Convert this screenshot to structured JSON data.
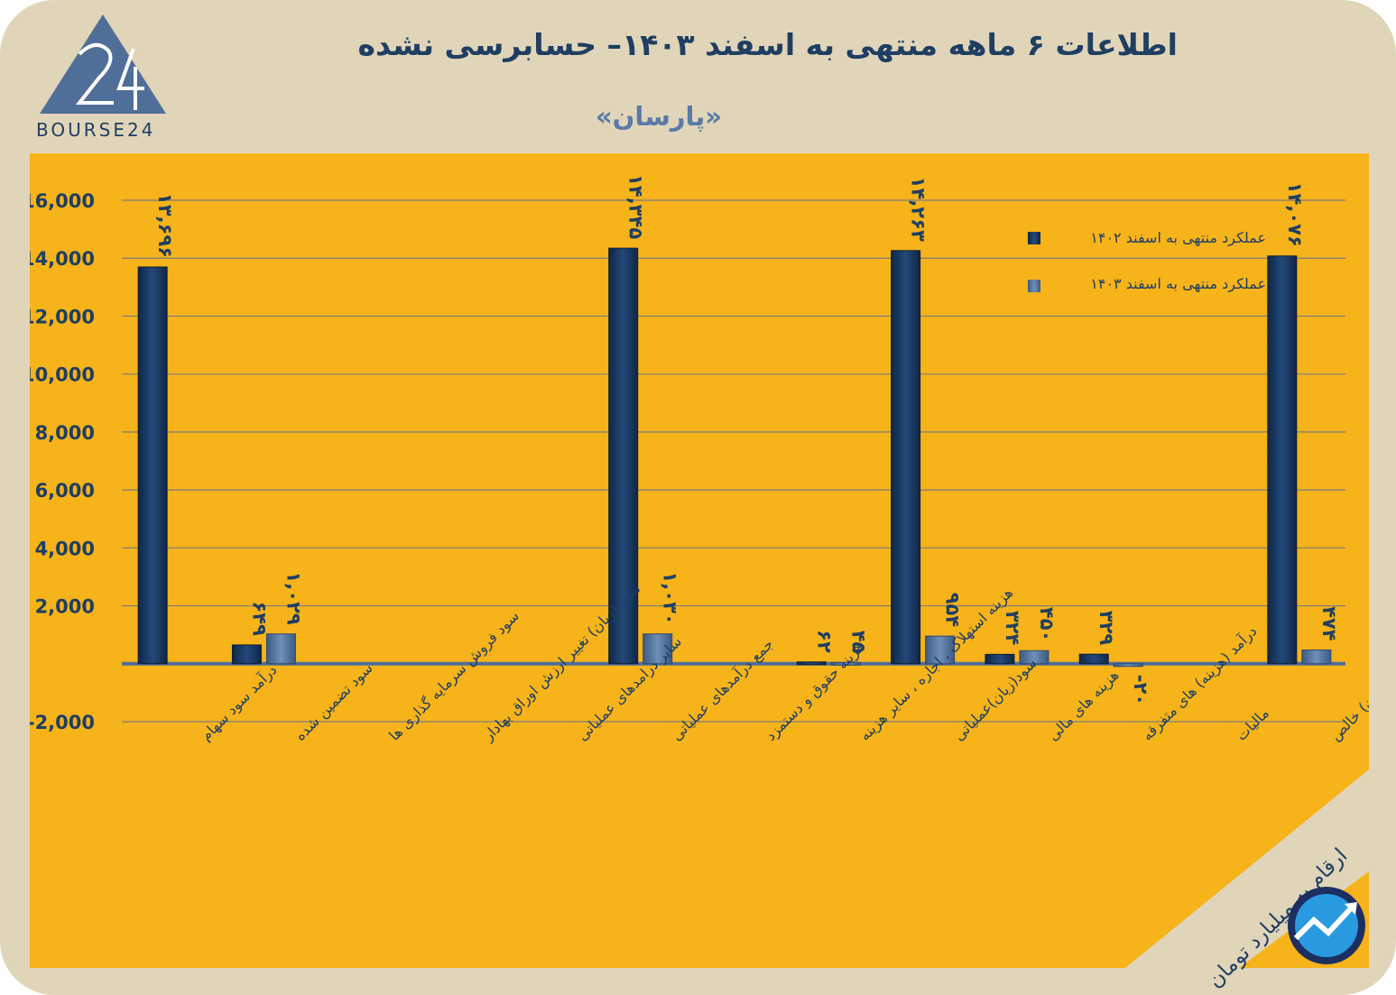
{
  "header": {
    "title": "اطلاعات ۶ ماهه منتهی به اسفند ۱۴۰۳– حسابرسی نشده",
    "subtitle": "«پارسان»",
    "logo_text": "BOURSE24"
  },
  "footer": {
    "unit_note": "ارقام به میلیارد تومان"
  },
  "colors": {
    "background": "#e0d5b9",
    "plot_background": "#f6b31a",
    "series_1402": "#1a3a61",
    "series_1403": "#4f6f98",
    "text": "#1f3e62"
  },
  "chart_data": {
    "type": "bar",
    "ylim": [
      -2000,
      16000
    ],
    "yticks": [
      "-2,000",
      "",
      "2,000",
      "4,000",
      "6,000",
      "8,000",
      "10,000",
      "12,000",
      "14,000",
      "16,000"
    ],
    "ytick_values": [
      -2000,
      0,
      2000,
      4000,
      6000,
      8000,
      10000,
      12000,
      14000,
      16000
    ],
    "grid": true,
    "legend_position": "top-right",
    "categories": [
      "درآمد سود سهام",
      "سود تضمین شده",
      "سود فروش سرمایه گذاری ها",
      "سود (زیان) تغییر ارزش اوراق بهادار",
      "سایر درامدهای عملیاتی",
      "جمع درآمدهای عملیاتی",
      "هزینه حقوق و دستمزد",
      "هزینه استهلاک ، اجاره ، سایر هزینه",
      "سود(زیان)عملیاتی",
      "هزینه های مالی",
      "درآمد (هزینه) های متفرقه",
      "مالیات",
      "سود(زیان) خالص"
    ],
    "series": [
      {
        "name": "عملکرد منتهی به اسفند ۱۴۰۲",
        "values": [
          13696,
          649,
          0,
          0,
          0,
          14345,
          0,
          62,
          14263,
          324,
          329,
          0,
          14076
        ],
        "labels": [
          "۱۳,۶۹۶",
          "۶۴۹",
          "",
          "",
          "",
          "۱۴,۳۴۵",
          "",
          "۶۲",
          "۱۴,۲۶۳",
          "۳۲۴",
          "۳۲۹",
          "",
          "۱۴,۰۷۶"
        ]
      },
      {
        "name": "عملکرد منتهی به اسفند ۱۴۰۳",
        "values": [
          0,
          1029,
          0,
          0,
          0,
          1030,
          0,
          45,
          954,
          450,
          -20,
          0,
          474
        ],
        "labels": [
          "",
          "۱,۰۲۹",
          "",
          "",
          "",
          "۱,۰۳۰",
          "",
          "۴۵",
          "۹۵۴",
          "۴۵۰",
          "-۲۰",
          "",
          "۴۷۴"
        ]
      }
    ]
  }
}
